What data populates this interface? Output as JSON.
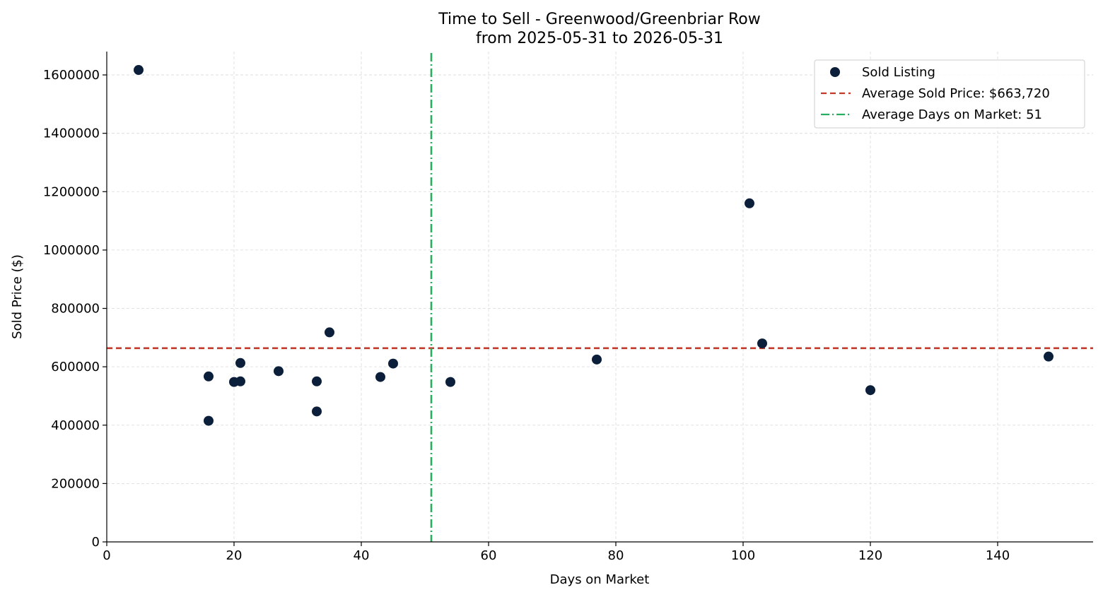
{
  "chart_data": {
    "type": "scatter",
    "title_line1": "Time to Sell - Greenwood/Greenbriar Row",
    "title_line2": "from 2025-05-31 to 2026-05-31",
    "xlabel": "Days on Market",
    "ylabel": "Sold Price ($)",
    "xlim": [
      0,
      155
    ],
    "ylim": [
      0,
      1680000
    ],
    "xticks": [
      0,
      20,
      40,
      60,
      80,
      100,
      120,
      140
    ],
    "yticks": [
      0,
      200000,
      400000,
      600000,
      800000,
      1000000,
      1200000,
      1400000,
      1600000
    ],
    "grid": true,
    "legend_position": "top-right",
    "series": [
      {
        "name": "Sold Listing",
        "color": "#0b1f3a",
        "points": [
          {
            "x": 5,
            "y": 1617000
          },
          {
            "x": 16,
            "y": 567000
          },
          {
            "x": 16,
            "y": 415000
          },
          {
            "x": 20,
            "y": 548000
          },
          {
            "x": 21,
            "y": 550000
          },
          {
            "x": 21,
            "y": 613000
          },
          {
            "x": 27,
            "y": 585000
          },
          {
            "x": 33,
            "y": 550000
          },
          {
            "x": 33,
            "y": 447000
          },
          {
            "x": 35,
            "y": 718000
          },
          {
            "x": 43,
            "y": 565000
          },
          {
            "x": 45,
            "y": 611000
          },
          {
            "x": 54,
            "y": 548000
          },
          {
            "x": 77,
            "y": 625000
          },
          {
            "x": 101,
            "y": 1160000
          },
          {
            "x": 103,
            "y": 680000
          },
          {
            "x": 120,
            "y": 520000
          },
          {
            "x": 148,
            "y": 635000
          }
        ]
      }
    ],
    "reference_lines": [
      {
        "name": "Average Sold Price: $663,720",
        "orientation": "horizontal",
        "value": 663720,
        "color": "#c0392b",
        "style": "dashed"
      },
      {
        "name": "Average Days on Market: 51",
        "orientation": "vertical",
        "value": 51,
        "color": "#27ae60",
        "style": "dashdot"
      }
    ]
  }
}
